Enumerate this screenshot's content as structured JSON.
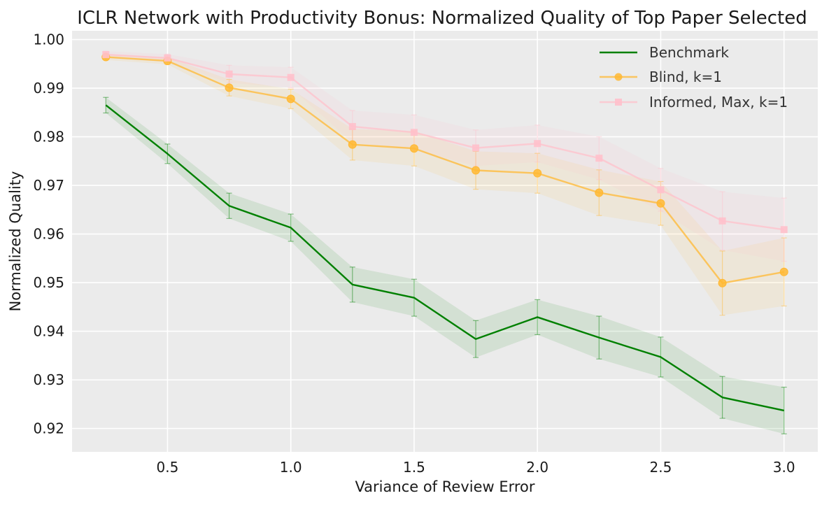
{
  "chart_data": {
    "type": "line",
    "title": "ICLR Network with Productivity Bonus: Normalized Quality of Top Paper Selected",
    "xlabel": "Variance of Review Error",
    "ylabel": "Normalized Quality",
    "xlim": [
      0.113,
      3.137
    ],
    "ylim": [
      0.9152,
      1.0018
    ],
    "xticks": [
      0.5,
      1.0,
      1.5,
      2.0,
      2.5,
      3.0
    ],
    "xtick_labels": [
      "0.5",
      "1.0",
      "1.5",
      "2.0",
      "2.5",
      "3.0"
    ],
    "yticks": [
      0.92,
      0.93,
      0.94,
      0.95,
      0.96,
      0.97,
      0.98,
      0.99,
      1.0
    ],
    "ytick_labels": [
      "0.92",
      "0.93",
      "0.94",
      "0.95",
      "0.96",
      "0.97",
      "0.98",
      "0.99",
      "1.00"
    ],
    "grid": true,
    "legend_position": "top-right",
    "x": [
      0.25,
      0.5,
      0.75,
      1.0,
      1.25,
      1.5,
      1.75,
      2.0,
      2.25,
      2.5,
      2.75,
      3.0
    ],
    "series": [
      {
        "name": "Benchmark",
        "color": "#008000",
        "marker": "none",
        "values": [
          0.9865,
          0.9765,
          0.9658,
          0.9613,
          0.9496,
          0.9469,
          0.9384,
          0.9429,
          0.9387,
          0.9347,
          0.9264,
          0.9237
        ],
        "lower": [
          0.9849,
          0.9745,
          0.9632,
          0.9585,
          0.946,
          0.9431,
          0.9346,
          0.9393,
          0.9343,
          0.9306,
          0.9221,
          0.9189
        ],
        "upper": [
          0.9881,
          0.9785,
          0.9684,
          0.9641,
          0.9532,
          0.9507,
          0.9422,
          0.9465,
          0.9431,
          0.9388,
          0.9307,
          0.9285
        ]
      },
      {
        "name": "Blind, k=1",
        "color": "#ffb833",
        "marker": "circle",
        "values": [
          0.9964,
          0.9956,
          0.9901,
          0.9878,
          0.9784,
          0.9776,
          0.9731,
          0.9725,
          0.9685,
          0.9663,
          0.9499,
          0.9522
        ],
        "lower": [
          0.9958,
          0.9949,
          0.9884,
          0.9858,
          0.9752,
          0.974,
          0.9692,
          0.9684,
          0.9638,
          0.9618,
          0.9433,
          0.9452
        ],
        "upper": [
          0.997,
          0.9963,
          0.9918,
          0.9898,
          0.9816,
          0.9812,
          0.977,
          0.9766,
          0.9732,
          0.9708,
          0.9565,
          0.9592
        ]
      },
      {
        "name": "Informed, Max, k=1",
        "color": "#ffc0cb",
        "marker": "square",
        "values": [
          0.9969,
          0.9962,
          0.9929,
          0.9922,
          0.9821,
          0.9809,
          0.9777,
          0.9786,
          0.9756,
          0.9691,
          0.9627,
          0.9609
        ],
        "lower": [
          0.9962,
          0.9954,
          0.9911,
          0.9901,
          0.9788,
          0.9773,
          0.974,
          0.9748,
          0.9712,
          0.9647,
          0.9567,
          0.9544
        ],
        "upper": [
          0.9976,
          0.997,
          0.9947,
          0.9943,
          0.9854,
          0.9845,
          0.9814,
          0.9824,
          0.98,
          0.9735,
          0.9687,
          0.9674
        ]
      }
    ]
  }
}
